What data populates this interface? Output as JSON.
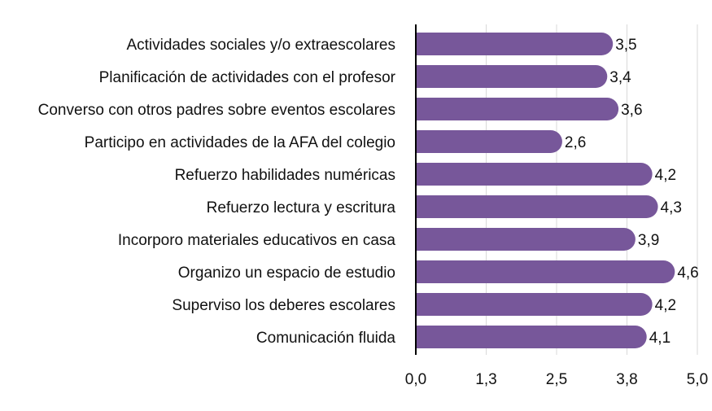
{
  "chart_data": {
    "type": "bar",
    "orientation": "horizontal",
    "title": "",
    "xlabel": "",
    "ylabel": "",
    "categories": [
      "Actividades sociales y/o extraescolares",
      "Planificación de actividades con el profesor",
      "Converso con otros padres sobre eventos escolares",
      "Participo en actividades de la AFA del colegio",
      "Refuerzo habilidades numéricas",
      "Refuerzo lectura y escritura",
      "Incorporo materiales educativos en casa",
      "Organizo un espacio de estudio",
      "Superviso los deberes escolares",
      "Comunicación fluida"
    ],
    "values": [
      3.5,
      3.4,
      3.6,
      2.6,
      4.2,
      4.3,
      3.9,
      4.6,
      4.2,
      4.1
    ],
    "value_labels": [
      "3,5",
      "3,4",
      "3,6",
      "2,6",
      "4,2",
      "4,3",
      "3,9",
      "4,6",
      "4,2",
      "4,1"
    ],
    "xlim": [
      0,
      5
    ],
    "xticks": [
      0,
      1.25,
      2.5,
      3.75,
      5
    ],
    "xtick_labels": [
      "0,0",
      "1,3",
      "2,5",
      "3,8",
      "5,0"
    ],
    "grid": "vertical",
    "legend": "none",
    "colors": {
      "bar": "#77579a",
      "grid": "#d9d9d9",
      "axis": "#000000"
    }
  }
}
